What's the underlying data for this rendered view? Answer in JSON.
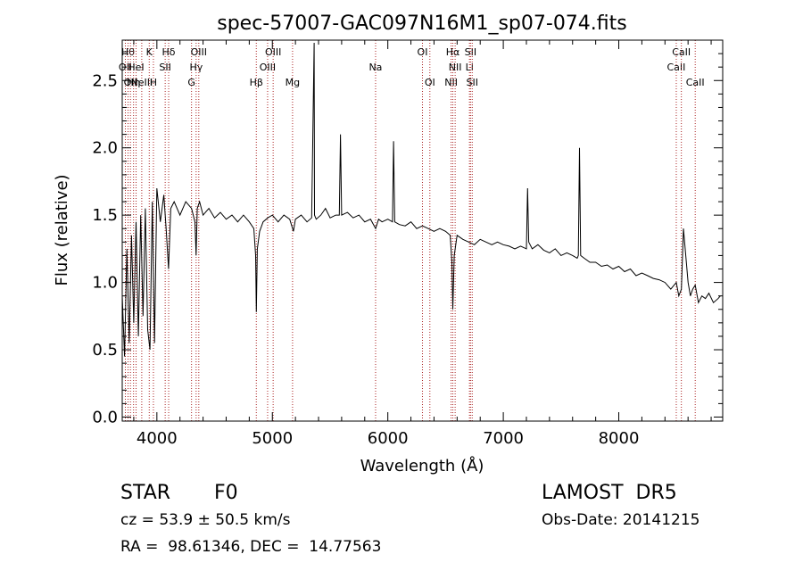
{
  "chart_data": {
    "type": "line",
    "title": "spec-57007-GAC097N16M1_sp07-074.fits",
    "xlabel": "Wavelength (Å)",
    "ylabel": "Flux (relative)",
    "xlim": [
      3700,
      8900
    ],
    "ylim": [
      -0.03,
      2.8
    ],
    "xticks": [
      4000,
      5000,
      6000,
      7000,
      8000
    ],
    "yticks": [
      0.0,
      0.5,
      1.0,
      1.5,
      2.0,
      2.5
    ],
    "ytick_labels": [
      "0.0",
      "0.5",
      "1.0",
      "1.5",
      "2.0",
      "2.5"
    ],
    "grid": false,
    "line_color": "#000000",
    "marker_color": "#aa2222",
    "line_markers": [
      {
        "wavelength": 3727,
        "label": "OII",
        "row": 2
      },
      {
        "wavelength": 3750,
        "label": "Hθ",
        "row": 1
      },
      {
        "wavelength": 3771,
        "label": "OII",
        "row": 3
      },
      {
        "wavelength": 3798,
        "label": "Hη",
        "row": 3
      },
      {
        "wavelength": 3820,
        "label": "HeI",
        "row": 2
      },
      {
        "wavelength": 3869,
        "label": "NeIII",
        "row": 3
      },
      {
        "wavelength": 3934,
        "label": "K",
        "row": 1
      },
      {
        "wavelength": 3970,
        "label": "H",
        "row": 3
      },
      {
        "wavelength": 4072,
        "label": "SII",
        "row": 2
      },
      {
        "wavelength": 4102,
        "label": "Hδ",
        "row": 1
      },
      {
        "wavelength": 4300,
        "label": "G",
        "row": 3
      },
      {
        "wavelength": 4340,
        "label": "Hγ",
        "row": 2
      },
      {
        "wavelength": 4363,
        "label": "OIII",
        "row": 1
      },
      {
        "wavelength": 4861,
        "label": "Hβ",
        "row": 3
      },
      {
        "wavelength": 4959,
        "label": "OIII",
        "row": 2
      },
      {
        "wavelength": 5007,
        "label": "OIII",
        "row": 1
      },
      {
        "wavelength": 5175,
        "label": "Mg",
        "row": 3
      },
      {
        "wavelength": 5894,
        "label": "Na",
        "row": 2
      },
      {
        "wavelength": 6300,
        "label": "OI",
        "row": 1
      },
      {
        "wavelength": 6364,
        "label": "OI",
        "row": 3
      },
      {
        "wavelength": 6548,
        "label": "NII",
        "row": 3
      },
      {
        "wavelength": 6563,
        "label": "Hα",
        "row": 1
      },
      {
        "wavelength": 6583,
        "label": "NII",
        "row": 2
      },
      {
        "wavelength": 6707,
        "label": "Li",
        "row": 2
      },
      {
        "wavelength": 6716,
        "label": "SII",
        "row": 1
      },
      {
        "wavelength": 6731,
        "label": "SII",
        "row": 3
      },
      {
        "wavelength": 8498,
        "label": "CaII",
        "row": 2
      },
      {
        "wavelength": 8542,
        "label": "CaII",
        "row": 1
      },
      {
        "wavelength": 8662,
        "label": "CaII",
        "row": 3
      }
    ],
    "series": [
      {
        "x": [
          3700,
          3720,
          3740,
          3760,
          3780,
          3800,
          3820,
          3840,
          3860,
          3880,
          3900,
          3920,
          3940,
          3960,
          3980,
          4000,
          4030,
          4060,
          4080,
          4101,
          4120,
          4150,
          4200,
          4250,
          4300,
          4330,
          4340,
          4350,
          4370,
          4400,
          4450,
          4500,
          4550,
          4600,
          4650,
          4700,
          4750,
          4800,
          4840,
          4855,
          4861,
          4870,
          4890,
          4920,
          4960,
          5000,
          5050,
          5100,
          5150,
          5183,
          5200,
          5250,
          5300,
          5340,
          5362,
          5365,
          5380,
          5420,
          5460,
          5500,
          5550,
          5580,
          5590,
          5600,
          5650,
          5700,
          5750,
          5800,
          5850,
          5894,
          5920,
          5950,
          6000,
          6040,
          6050,
          6060,
          6100,
          6150,
          6200,
          6250,
          6300,
          6350,
          6400,
          6450,
          6500,
          6540,
          6555,
          6563,
          6575,
          6600,
          6650,
          6700,
          6750,
          6800,
          6850,
          6900,
          6950,
          7000,
          7050,
          7100,
          7150,
          7200,
          7210,
          7220,
          7250,
          7300,
          7350,
          7400,
          7450,
          7500,
          7550,
          7600,
          7640,
          7650,
          7660,
          7670,
          7700,
          7750,
          7800,
          7850,
          7900,
          7950,
          8000,
          8050,
          8100,
          8150,
          8200,
          8250,
          8300,
          8350,
          8400,
          8450,
          8498,
          8520,
          8542,
          8560,
          8600,
          8620,
          8640,
          8662,
          8690,
          8720,
          8750,
          8780,
          8820,
          8860,
          8880
        ],
        "y": [
          0.9,
          0.45,
          1.25,
          0.55,
          1.35,
          0.7,
          1.45,
          0.6,
          1.5,
          0.75,
          1.55,
          0.65,
          0.5,
          1.6,
          0.55,
          1.7,
          1.45,
          1.65,
          1.4,
          1.1,
          1.55,
          1.6,
          1.5,
          1.6,
          1.55,
          1.45,
          1.2,
          1.55,
          1.6,
          1.5,
          1.55,
          1.48,
          1.52,
          1.47,
          1.5,
          1.45,
          1.5,
          1.45,
          1.4,
          1.2,
          0.78,
          1.25,
          1.38,
          1.45,
          1.48,
          1.5,
          1.45,
          1.5,
          1.47,
          1.38,
          1.47,
          1.5,
          1.45,
          1.48,
          2.78,
          1.5,
          1.47,
          1.5,
          1.55,
          1.48,
          1.5,
          1.5,
          2.1,
          1.5,
          1.52,
          1.48,
          1.5,
          1.45,
          1.47,
          1.4,
          1.47,
          1.45,
          1.47,
          1.45,
          2.05,
          1.45,
          1.43,
          1.42,
          1.45,
          1.4,
          1.42,
          1.4,
          1.38,
          1.4,
          1.38,
          1.35,
          1.15,
          0.8,
          1.2,
          1.35,
          1.32,
          1.3,
          1.28,
          1.32,
          1.3,
          1.28,
          1.3,
          1.28,
          1.27,
          1.25,
          1.27,
          1.25,
          1.7,
          1.3,
          1.25,
          1.28,
          1.24,
          1.22,
          1.25,
          1.2,
          1.22,
          1.2,
          1.18,
          1.2,
          2.0,
          1.2,
          1.18,
          1.15,
          1.15,
          1.12,
          1.13,
          1.1,
          1.12,
          1.08,
          1.1,
          1.05,
          1.07,
          1.05,
          1.03,
          1.02,
          1.0,
          0.95,
          1.0,
          0.9,
          0.95,
          1.4,
          1.0,
          0.9,
          0.95,
          0.98,
          0.85,
          0.9,
          0.88,
          0.92,
          0.85,
          0.88,
          0.9
        ]
      }
    ]
  },
  "info": {
    "object_class": "STAR",
    "subclass": "F0",
    "survey": "LAMOST  DR5",
    "redshift_text": "cz = 53.9 ± 50.5 km/s",
    "obs_date": "Obs-Date: 20141215",
    "coords": "RA =  98.61346, DEC =  14.77563"
  }
}
